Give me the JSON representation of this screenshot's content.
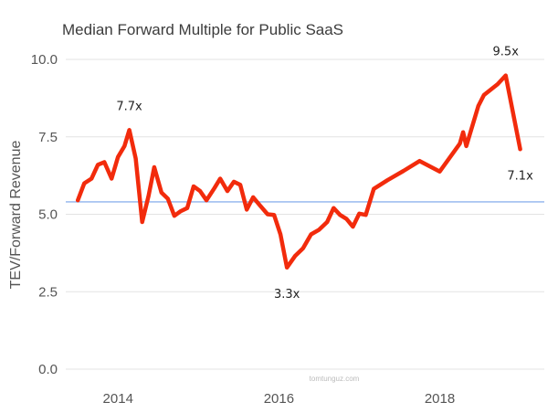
{
  "chart_data": {
    "type": "line",
    "title": "Median Forward Multiple for Public SaaS",
    "ylabel": "TEV/Forward Revenue",
    "xlabel": "",
    "ylim": [
      0,
      10
    ],
    "xlim": [
      2013.35,
      2019.3
    ],
    "y_ticks": [
      "0.0",
      "2.5",
      "5.0",
      "7.5",
      "10.0"
    ],
    "y_tick_values": [
      0,
      2.5,
      5,
      7.5,
      10
    ],
    "x_ticks": [
      "2014",
      "2016",
      "2018"
    ],
    "x_tick_values": [
      2014,
      2016,
      2018
    ],
    "grid": "horizontal",
    "reference_line": {
      "value": 5.4,
      "color": "#8fb3ee"
    },
    "series": [
      {
        "color": "#f22b0c",
        "points": [
          [
            2013.5,
            5.45
          ],
          [
            2013.58,
            6.0
          ],
          [
            2013.67,
            6.15
          ],
          [
            2013.75,
            6.6
          ],
          [
            2013.83,
            6.68
          ],
          [
            2013.92,
            6.15
          ],
          [
            2014.0,
            6.85
          ],
          [
            2014.08,
            7.2
          ],
          [
            2014.14,
            7.72
          ],
          [
            2014.22,
            6.8
          ],
          [
            2014.3,
            4.75
          ],
          [
            2014.38,
            5.6
          ],
          [
            2014.45,
            6.52
          ],
          [
            2014.54,
            5.7
          ],
          [
            2014.62,
            5.5
          ],
          [
            2014.7,
            4.95
          ],
          [
            2014.78,
            5.1
          ],
          [
            2014.86,
            5.2
          ],
          [
            2014.94,
            5.9
          ],
          [
            2015.02,
            5.75
          ],
          [
            2015.1,
            5.45
          ],
          [
            2015.2,
            5.85
          ],
          [
            2015.27,
            6.15
          ],
          [
            2015.36,
            5.75
          ],
          [
            2015.44,
            6.05
          ],
          [
            2015.52,
            5.95
          ],
          [
            2015.6,
            5.15
          ],
          [
            2015.68,
            5.55
          ],
          [
            2015.76,
            5.3
          ],
          [
            2015.86,
            5.0
          ],
          [
            2015.94,
            4.98
          ],
          [
            2016.02,
            4.35
          ],
          [
            2016.1,
            3.28
          ],
          [
            2016.2,
            3.65
          ],
          [
            2016.3,
            3.9
          ],
          [
            2016.4,
            4.35
          ],
          [
            2016.5,
            4.5
          ],
          [
            2016.6,
            4.75
          ],
          [
            2016.68,
            5.2
          ],
          [
            2016.76,
            4.98
          ],
          [
            2016.84,
            4.85
          ],
          [
            2016.92,
            4.6
          ],
          [
            2017.0,
            5.02
          ],
          [
            2017.08,
            4.98
          ],
          [
            2017.18,
            5.82
          ],
          [
            2017.35,
            6.1
          ],
          [
            2017.55,
            6.4
          ],
          [
            2017.75,
            6.72
          ],
          [
            2018.0,
            6.38
          ],
          [
            2018.25,
            7.28
          ],
          [
            2018.29,
            7.65
          ],
          [
            2018.33,
            7.2
          ],
          [
            2018.48,
            8.5
          ],
          [
            2018.55,
            8.85
          ],
          [
            2018.72,
            9.2
          ],
          [
            2018.82,
            9.48
          ],
          [
            2019.0,
            7.1
          ]
        ]
      }
    ],
    "annotations": [
      {
        "text": "7.7x",
        "x": 2014.14,
        "y": 7.72,
        "position": "above"
      },
      {
        "text": "3.3x",
        "x": 2016.1,
        "y": 3.28,
        "position": "below"
      },
      {
        "text": "9.5x",
        "x": 2018.82,
        "y": 9.48,
        "position": "above"
      },
      {
        "text": "7.1x",
        "x": 2019.0,
        "y": 7.1,
        "position": "below"
      }
    ],
    "watermark": "tomtunguz.com"
  }
}
